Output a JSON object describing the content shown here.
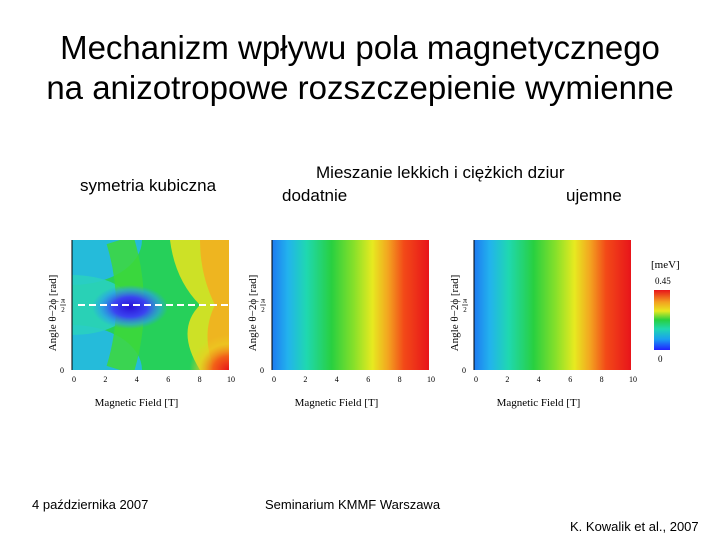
{
  "slide": {
    "title_line1": "Mechanizm wpływu pola magnetycznego",
    "title_line2": "na anizotropowe rozszczepienie wymienne",
    "label_cubic": "symetria kubiczna",
    "label_mixing": "Mieszanie lekkich i ciężkich dziur",
    "label_positive": "dodatnie",
    "label_negative": "ujemne",
    "footer_date": "4 października 2007",
    "footer_seminar": "Seminarium KMMF Warszawa",
    "footer_credit": "K. Kowalik et al., 2007"
  },
  "chart_data": [
    {
      "type": "heatmap",
      "title": "symetria kubiczna",
      "xlabel": "Magnetic Field [T]",
      "ylabel": "Angle θ−2ϕ [rad]",
      "xlim": [
        0,
        10
      ],
      "ylim": [
        0,
        3.1416
      ],
      "xticks": [
        "0",
        "2",
        "4",
        "6",
        "8",
        "10"
      ],
      "yticks": [
        "0",
        "π/2"
      ],
      "reference_line": {
        "y": "π/2",
        "style": "dashed"
      }
    },
    {
      "type": "heatmap",
      "title": "dodatnie",
      "xlabel": "Magnetic Field [T]",
      "ylabel": "Angle θ−2ϕ [rad]",
      "xlim": [
        0,
        10
      ],
      "ylim": [
        0,
        3.1416
      ],
      "xticks": [
        "0",
        "2",
        "4",
        "6",
        "8",
        "10"
      ],
      "yticks": [
        "0",
        "π/2"
      ]
    },
    {
      "type": "heatmap",
      "title": "ujemne",
      "xlabel": "Magnetic Field [T]",
      "ylabel": "Angle θ−2ϕ [rad]",
      "xlim": [
        0,
        10
      ],
      "ylim": [
        0,
        3.1416
      ],
      "xticks": [
        "0",
        "2",
        "4",
        "6",
        "8",
        "10"
      ],
      "yticks": [
        "0",
        "π/2"
      ],
      "colorbar": {
        "unit": "[meV]",
        "max_label": "0.45",
        "min_label": "0",
        "max": 0.45,
        "min": 0
      }
    }
  ]
}
